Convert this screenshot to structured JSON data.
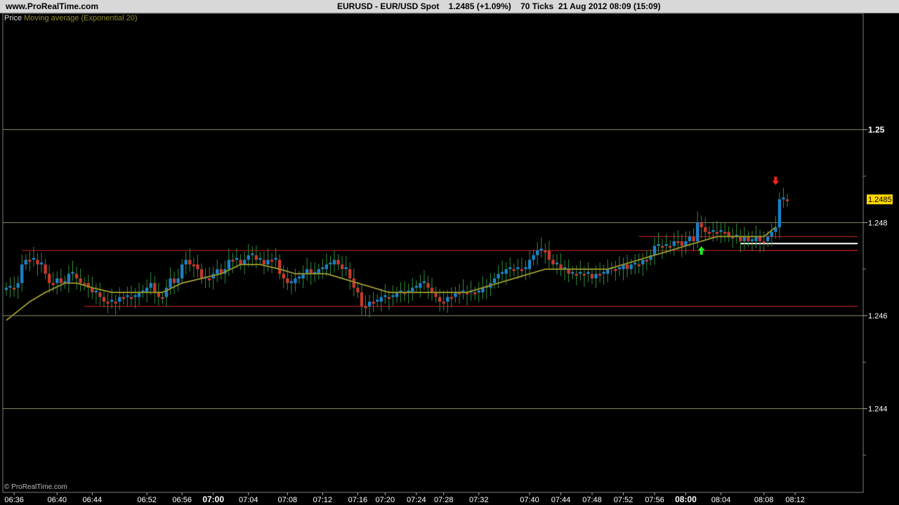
{
  "header": {
    "site": "www.ProRealTime.com",
    "title": "EURUSD - EUR/USD Spot    1.2485 (+1.09%)    70 Ticks  21 Aug 2012 08:09 (15:09)"
  },
  "legend": {
    "price_label": "Price",
    "ma_label": "Moving average (Exponential 20)"
  },
  "footer": {
    "credit": "© ProRealTime.com"
  },
  "colors": {
    "bull": "#1a7fc4",
    "bear": "#c0392b",
    "ma": "#8f8a2a",
    "hline": "#cc2222",
    "grid": "#8a8a66",
    "last_price_bg": "#ffd700"
  },
  "chart_data": {
    "type": "candlestick",
    "symbol": "EURUSD",
    "ylim": [
      1.2422,
      1.2525
    ],
    "y_ticks": [
      {
        "value": 1.25,
        "label": "1.25",
        "major": true
      },
      {
        "value": 1.248,
        "label": "1.248",
        "major": false
      },
      {
        "value": 1.246,
        "label": "1.246",
        "major": false
      },
      {
        "value": 1.244,
        "label": "1.244",
        "major": false
      }
    ],
    "y_minor_ticks": [
      1.249,
      1.247,
      1.245,
      1.243
    ],
    "last_price": {
      "value": 1.2485,
      "label": "1.2485"
    },
    "x_ticks": [
      {
        "bar": 2,
        "label": "06:36",
        "major": false
      },
      {
        "bar": 13,
        "label": "06:40",
        "major": false
      },
      {
        "bar": 22,
        "label": "06:44",
        "major": false
      },
      {
        "bar": 36,
        "label": "06:52",
        "major": false
      },
      {
        "bar": 45,
        "label": "06:56",
        "major": false
      },
      {
        "bar": 53,
        "label": "07:00",
        "major": true
      },
      {
        "bar": 62,
        "label": "07:04",
        "major": false
      },
      {
        "bar": 72,
        "label": "07:08",
        "major": false
      },
      {
        "bar": 81,
        "label": "07:12",
        "major": false
      },
      {
        "bar": 90,
        "label": "07:16",
        "major": false
      },
      {
        "bar": 97,
        "label": "07:20",
        "major": false
      },
      {
        "bar": 105,
        "label": "07:24",
        "major": false
      },
      {
        "bar": 112,
        "label": "07:28",
        "major": false
      },
      {
        "bar": 121,
        "label": "07:32",
        "major": false
      },
      {
        "bar": 134,
        "label": "07:40",
        "major": false
      },
      {
        "bar": 142,
        "label": "07:44",
        "major": false
      },
      {
        "bar": 150,
        "label": "07:48",
        "major": false
      },
      {
        "bar": 158,
        "label": "07:52",
        "major": false
      },
      {
        "bar": 166,
        "label": "07:56",
        "major": false
      },
      {
        "bar": 174,
        "label": "08:00",
        "major": true
      },
      {
        "bar": 183,
        "label": "08:04",
        "major": false
      },
      {
        "bar": 194,
        "label": "08:08",
        "major": false
      },
      {
        "bar": 202,
        "label": "08:12",
        "major": false
      }
    ],
    "closes": [
      1.2466,
      1.2466,
      1.2466,
      1.2467,
      1.2471,
      1.2472,
      1.2472,
      1.2472,
      1.2471,
      1.2471,
      1.2469,
      1.2467,
      1.2467,
      1.2468,
      1.2467,
      1.2467,
      1.2469,
      1.2469,
      1.2468,
      1.2467,
      1.2467,
      1.2466,
      1.2465,
      1.2465,
      1.2464,
      1.2463,
      1.2463,
      1.2463,
      1.2463,
      1.2464,
      1.2464,
      1.2464,
      1.2464,
      1.2464,
      1.2465,
      1.2465,
      1.2466,
      1.2467,
      1.2465,
      1.2464,
      1.2464,
      1.2466,
      1.2468,
      1.2467,
      1.2468,
      1.2471,
      1.2472,
      1.2471,
      1.2471,
      1.247,
      1.2468,
      1.2468,
      1.2468,
      1.2469,
      1.247,
      1.2469,
      1.247,
      1.2472,
      1.2472,
      1.2472,
      1.2471,
      1.2472,
      1.2473,
      1.2473,
      1.2472,
      1.2472,
      1.2471,
      1.2472,
      1.2472,
      1.2472,
      1.2469,
      1.2468,
      1.2467,
      1.2467,
      1.2468,
      1.2468,
      1.2469,
      1.247,
      1.2469,
      1.2469,
      1.247,
      1.247,
      1.2471,
      1.2471,
      1.2472,
      1.2471,
      1.247,
      1.247,
      1.2468,
      1.2466,
      1.2465,
      1.2462,
      1.2462,
      1.2463,
      1.2463,
      1.2463,
      1.2464,
      1.2464,
      1.2464,
      1.2464,
      1.2465,
      1.2465,
      1.2465,
      1.2465,
      1.2466,
      1.2466,
      1.2467,
      1.2467,
      1.2466,
      1.2465,
      1.2464,
      1.2463,
      1.2463,
      1.2464,
      1.2464,
      1.2465,
      1.2465,
      1.2465,
      1.2465,
      1.2465,
      1.2465,
      1.2465,
      1.2466,
      1.2466,
      1.2467,
      1.2468,
      1.2469,
      1.2469,
      1.247,
      1.247,
      1.247,
      1.247,
      1.247,
      1.247,
      1.2472,
      1.2473,
      1.2474,
      1.2474,
      1.2474,
      1.2472,
      1.2471,
      1.2471,
      1.247,
      1.247,
      1.2469,
      1.2469,
      1.2469,
      1.2469,
      1.2469,
      1.2469,
      1.2468,
      1.2469,
      1.2469,
      1.2469,
      1.247,
      1.247,
      1.247,
      1.247,
      1.2471,
      1.247,
      1.2471,
      1.2471,
      1.2471,
      1.2472,
      1.2472,
      1.2473,
      1.2475,
      1.2475,
      1.2475,
      1.2475,
      1.2475,
      1.2476,
      1.2476,
      1.2475,
      1.2476,
      1.2477,
      1.2476,
      1.248,
      1.2479,
      1.2478,
      1.2478,
      1.2478,
      1.2478,
      1.2478,
      1.2478,
      1.2477,
      1.2477,
      1.2477,
      1.2476,
      1.2477,
      1.2476,
      1.2476,
      1.2477,
      1.2476,
      1.2476,
      1.2477,
      1.2478,
      1.2479,
      1.2485,
      1.2485,
      1.2485
    ],
    "ma_label": "Moving average (Exponential 20)",
    "ma": [
      [
        0,
        1.2459
      ],
      [
        3,
        1.2461
      ],
      [
        6,
        1.2463
      ],
      [
        10,
        1.2465
      ],
      [
        15,
        1.2467
      ],
      [
        18,
        1.2467
      ],
      [
        22,
        1.2466
      ],
      [
        27,
        1.2465
      ],
      [
        32,
        1.2465
      ],
      [
        36,
        1.2465
      ],
      [
        40,
        1.2465
      ],
      [
        45,
        1.2467
      ],
      [
        50,
        1.2468
      ],
      [
        55,
        1.2469
      ],
      [
        60,
        1.2471
      ],
      [
        65,
        1.2471
      ],
      [
        70,
        1.247
      ],
      [
        74,
        1.2469
      ],
      [
        78,
        1.2469
      ],
      [
        82,
        1.2469
      ],
      [
        86,
        1.2468
      ],
      [
        90,
        1.2467
      ],
      [
        94,
        1.2466
      ],
      [
        98,
        1.2465
      ],
      [
        104,
        1.2465
      ],
      [
        110,
        1.2465
      ],
      [
        114,
        1.2465
      ],
      [
        118,
        1.2465
      ],
      [
        122,
        1.2466
      ],
      [
        126,
        1.2467
      ],
      [
        130,
        1.2468
      ],
      [
        134,
        1.2469
      ],
      [
        138,
        1.247
      ],
      [
        142,
        1.247
      ],
      [
        146,
        1.247
      ],
      [
        150,
        1.247
      ],
      [
        154,
        1.247
      ],
      [
        158,
        1.2471
      ],
      [
        162,
        1.2472
      ],
      [
        166,
        1.2473
      ],
      [
        170,
        1.2474
      ],
      [
        174,
        1.2475
      ],
      [
        178,
        1.2476
      ],
      [
        182,
        1.2477
      ],
      [
        186,
        1.2477
      ],
      [
        190,
        1.2477
      ],
      [
        194,
        1.2477
      ],
      [
        197,
        1.2479
      ]
    ],
    "horizontal_lines": [
      {
        "value": 1.2474,
        "from_bar": 4,
        "to_bar": 218,
        "color": "#cc2222"
      },
      {
        "value": 1.2462,
        "from_bar": 20,
        "to_bar": 218,
        "color": "#cc2222"
      },
      {
        "value": 1.2477,
        "from_bar": 162,
        "to_bar": 218,
        "color": "#cc2222"
      },
      {
        "value": 1.2474,
        "from_bar": 188,
        "to_bar": 218,
        "color": "#cc2222"
      },
      {
        "value": 1.24755,
        "from_bar": 188,
        "to_bar": 218,
        "color": "#ffffff"
      }
    ],
    "signals": [
      {
        "bar": 178,
        "value": 1.2474,
        "direction": "up",
        "color": "#22ee22"
      },
      {
        "bar": 197,
        "value": 1.2489,
        "direction": "down",
        "color": "#ee2222"
      }
    ]
  }
}
